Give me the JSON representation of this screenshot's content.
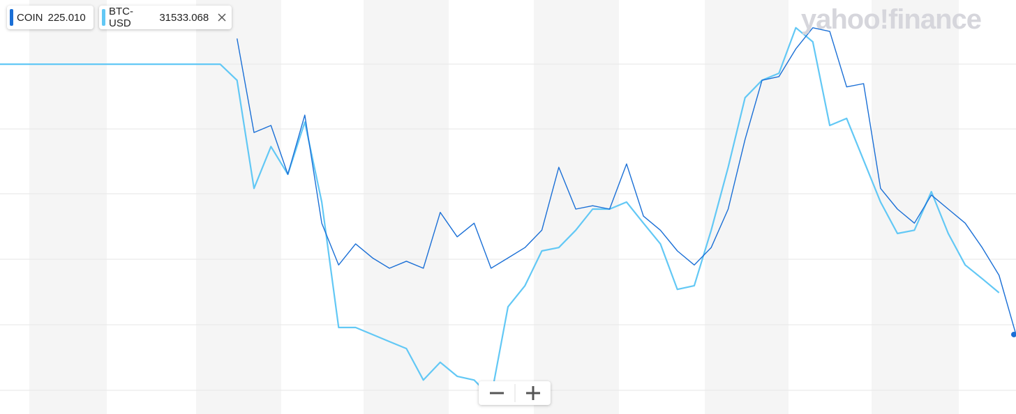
{
  "logo": "yahoo!finance",
  "chart_data": {
    "type": "line",
    "ylim": [
      0,
      100
    ],
    "series": [
      {
        "name": "COIN",
        "value_label": "225.010",
        "color": "#1a6fd6",
        "values": [
          null,
          null,
          null,
          null,
          null,
          null,
          null,
          null,
          null,
          null,
          null,
          null,
          null,
          null,
          90.7,
          68.0,
          69.7,
          57.9,
          72.2,
          46.1,
          36.0,
          41.1,
          37.7,
          35.2,
          36.9,
          35.2,
          48.7,
          42.8,
          46.1,
          35.2,
          37.7,
          40.2,
          44.4,
          59.6,
          49.5,
          50.3,
          49.5,
          60.4,
          47.8,
          44.4,
          39.4,
          36.0,
          40.2,
          49.5,
          66.3,
          80.6,
          81.5,
          88.2,
          93.3,
          92.4,
          79.0,
          79.8,
          54.5,
          49.5,
          46.1,
          52.9,
          49.5,
          46.1,
          40.2,
          33.5,
          19.2
        ]
      },
      {
        "name": "BTC-USD",
        "value_label": "31533.068",
        "color": "#62c8f5",
        "values": [
          84.5,
          84.5,
          84.5,
          84.5,
          84.5,
          84.5,
          84.5,
          84.5,
          84.5,
          84.5,
          84.5,
          84.5,
          84.5,
          84.5,
          80.6,
          54.5,
          64.6,
          57.9,
          70.5,
          51.2,
          20.9,
          20.9,
          19.2,
          17.5,
          15.8,
          8.2,
          12.5,
          9.1,
          8.2,
          4.0,
          25.9,
          31.0,
          39.4,
          40.2,
          44.4,
          49.5,
          49.5,
          51.2,
          46.1,
          41.1,
          30.1,
          31.0,
          44.4,
          59.6,
          76.4,
          80.6,
          82.3,
          93.3,
          89.9,
          69.7,
          71.4,
          61.3,
          51.2,
          43.6,
          44.4,
          53.7,
          43.6,
          36.0,
          32.7,
          29.3,
          null
        ]
      }
    ]
  }
}
